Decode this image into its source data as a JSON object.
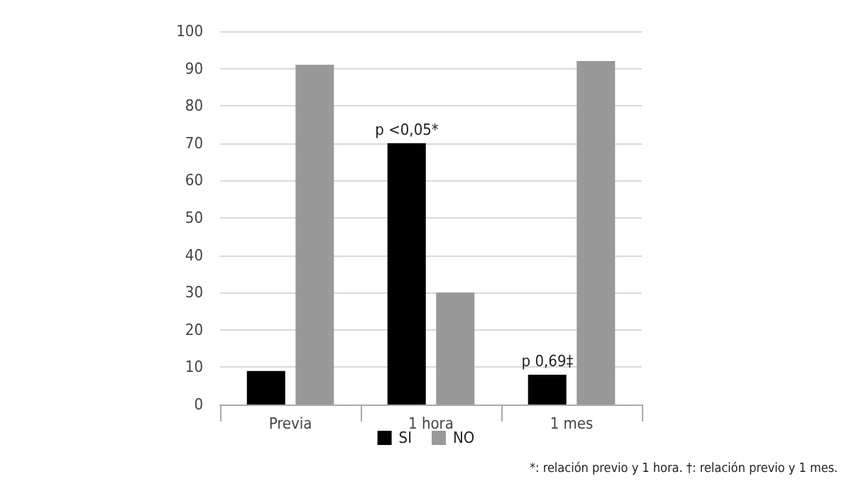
{
  "chart_data": {
    "type": "bar",
    "categories": [
      "Previa",
      "1 hora",
      "1 mes"
    ],
    "series": [
      {
        "name": "SI",
        "color": "#000000",
        "values": [
          9,
          70,
          8
        ]
      },
      {
        "name": "NO",
        "color": "#999999",
        "values": [
          91,
          30,
          92
        ]
      }
    ],
    "ylim": [
      0,
      100
    ],
    "yticks": [
      0,
      10,
      20,
      30,
      40,
      50,
      60,
      70,
      80,
      90,
      100
    ],
    "grid": "y",
    "legend": "bottom",
    "annotations": [
      {
        "text": "p <0,05*",
        "x": "1 hora",
        "y": 70
      },
      {
        "text": "p 0,69‡",
        "x": "1 mes",
        "y": 8
      },
      "*: relación previo y 1 hora. †: relación previo y 1 mes."
    ]
  }
}
